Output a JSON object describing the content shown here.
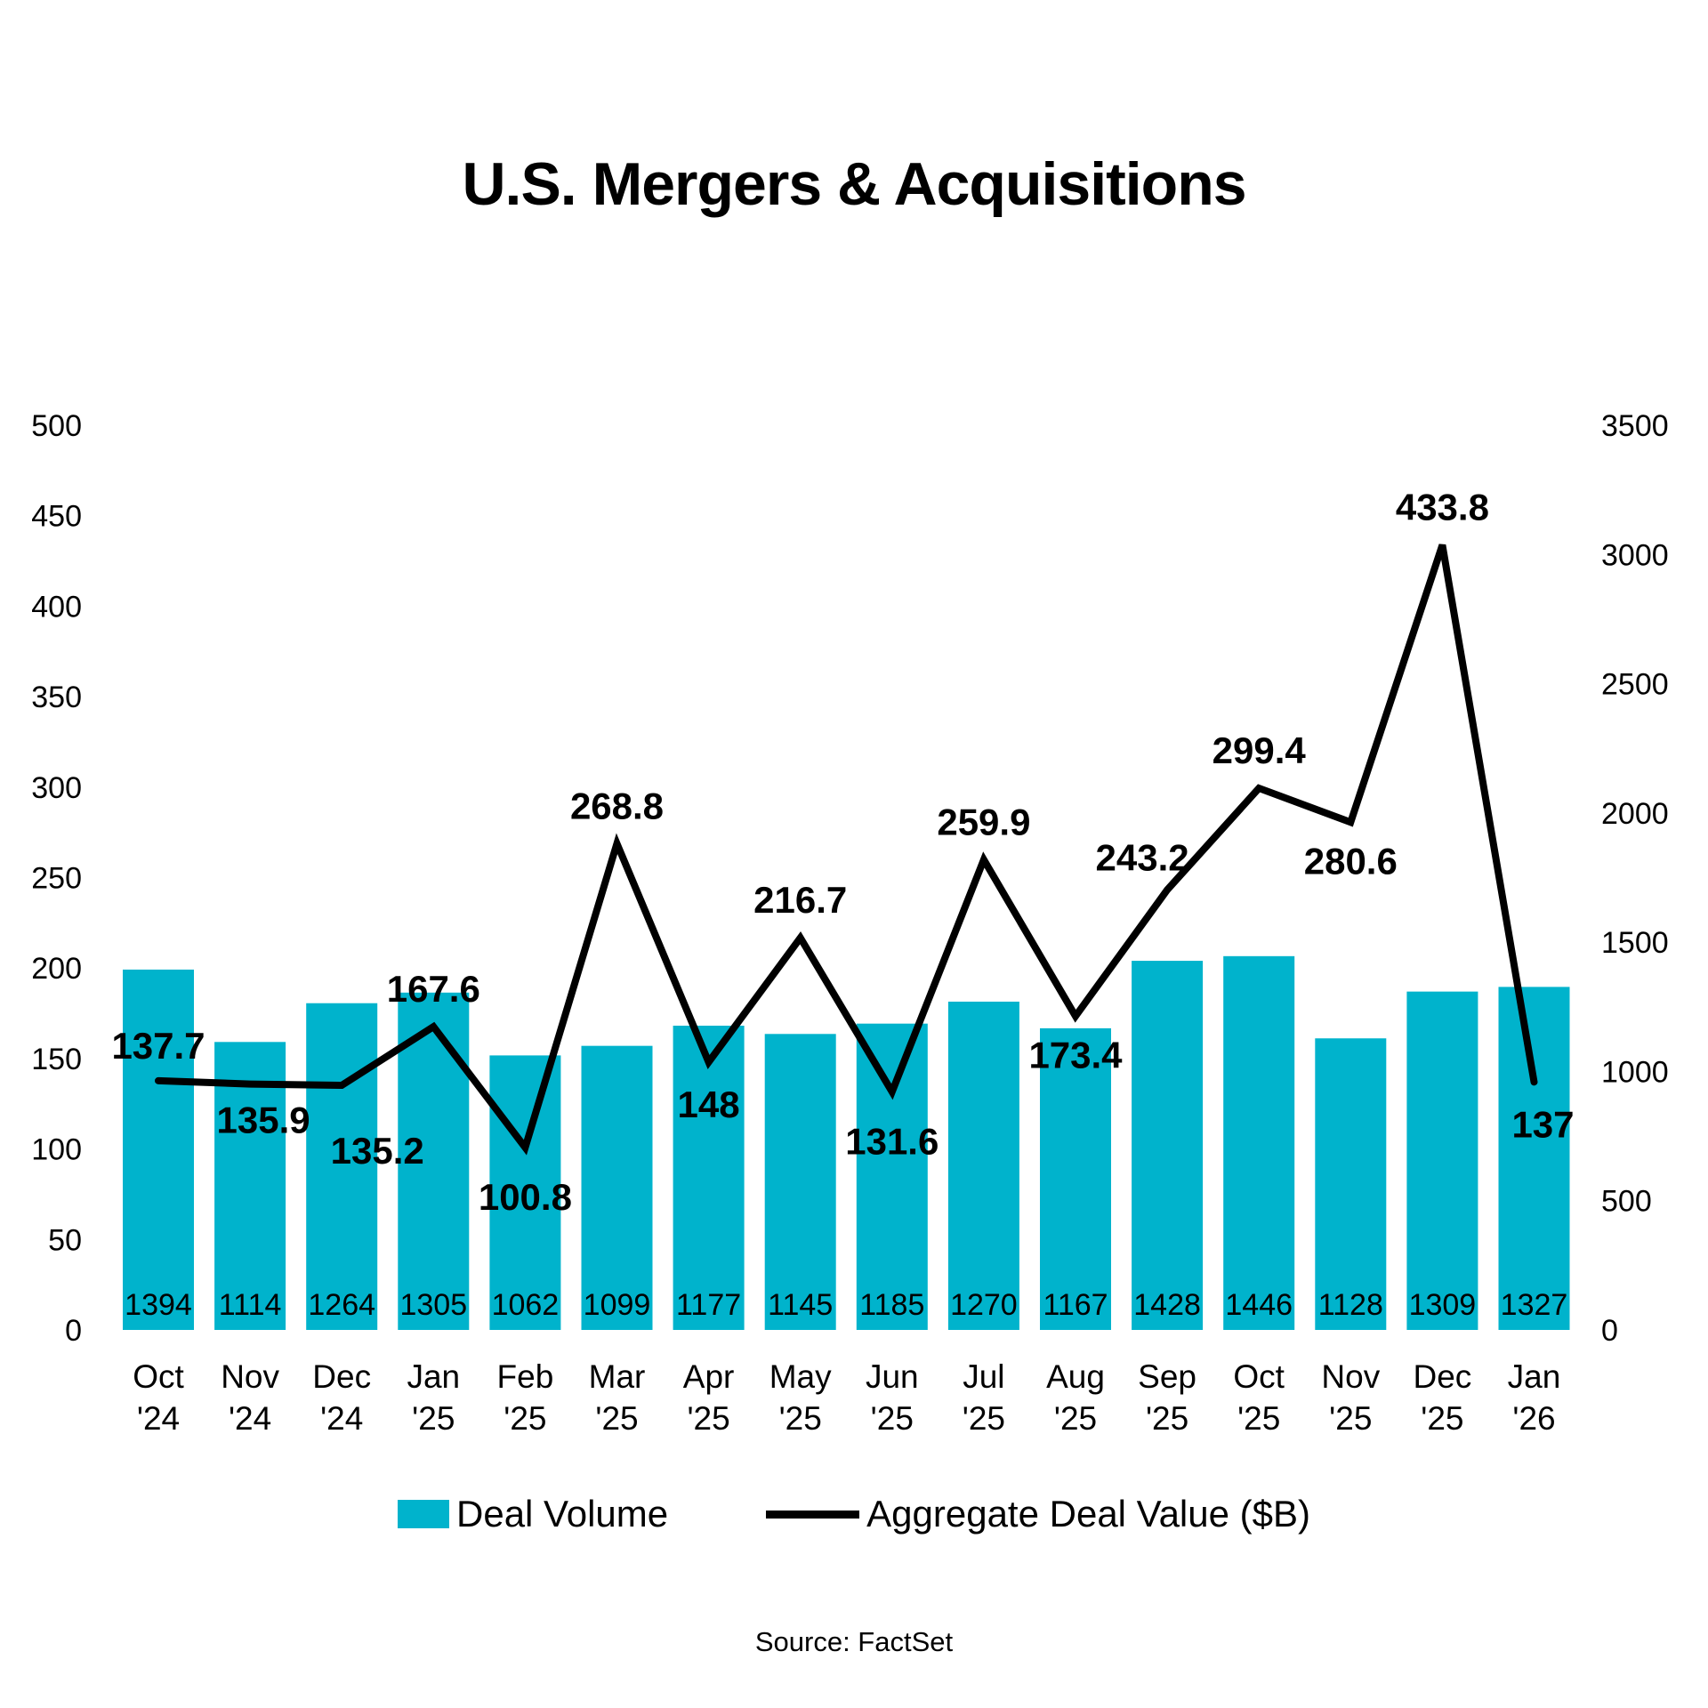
{
  "title": "U.S. Mergers & Acquisitions",
  "source": "Source: FactSet",
  "legend": {
    "bar_label": "Deal Volume",
    "line_label": "Aggregate Deal Value ($B)"
  },
  "colors": {
    "bar": "#00b3cc",
    "line": "#000000",
    "text": "#000000",
    "background": "#ffffff"
  },
  "chart_data": {
    "type": "bar",
    "subtype": "combo-bar-line-dual-axis",
    "title": "U.S. Mergers & Acquisitions",
    "categories": [
      {
        "line1": "Oct",
        "line2": "'24"
      },
      {
        "line1": "Nov",
        "line2": "'24"
      },
      {
        "line1": "Dec",
        "line2": "'24"
      },
      {
        "line1": "Jan",
        "line2": "'25"
      },
      {
        "line1": "Feb",
        "line2": "'25"
      },
      {
        "line1": "Mar",
        "line2": "'25"
      },
      {
        "line1": "Apr",
        "line2": "'25"
      },
      {
        "line1": "May",
        "line2": "'25"
      },
      {
        "line1": "Jun",
        "line2": "'25"
      },
      {
        "line1": "Jul",
        "line2": "'25"
      },
      {
        "line1": "Aug",
        "line2": "'25"
      },
      {
        "line1": "Sep",
        "line2": "'25"
      },
      {
        "line1": "Oct",
        "line2": "'25"
      },
      {
        "line1": "Nov",
        "line2": "'25"
      },
      {
        "line1": "Dec",
        "line2": "'25"
      },
      {
        "line1": "Jan",
        "line2": "'26"
      }
    ],
    "series": [
      {
        "name": "Deal Volume",
        "type": "bar",
        "axis": "right",
        "values": [
          1394,
          1114,
          1264,
          1305,
          1062,
          1099,
          1177,
          1145,
          1185,
          1270,
          1167,
          1428,
          1446,
          1128,
          1309,
          1327
        ]
      },
      {
        "name": "Aggregate Deal Value ($B)",
        "type": "line",
        "axis": "left",
        "values": [
          137.7,
          135.9,
          135.2,
          167.6,
          100.8,
          268.8,
          148,
          216.7,
          131.6,
          259.9,
          173.4,
          243.2,
          299.4,
          280.6,
          433.8,
          137
        ],
        "label_offsets": [
          [
            0,
            -25
          ],
          [
            15,
            55
          ],
          [
            40,
            88
          ],
          [
            0,
            -28
          ],
          [
            0,
            70
          ],
          [
            0,
            -28
          ],
          [
            0,
            62
          ],
          [
            0,
            -28
          ],
          [
            0,
            70
          ],
          [
            0,
            -28
          ],
          [
            0,
            58
          ],
          [
            -28,
            -22
          ],
          [
            0,
            -28
          ],
          [
            0,
            58
          ],
          [
            0,
            -28
          ],
          [
            10,
            62
          ]
        ]
      }
    ],
    "left_axis": {
      "min": 0,
      "max": 500,
      "step": 50,
      "ticks": [
        0,
        50,
        100,
        150,
        200,
        250,
        300,
        350,
        400,
        450,
        500
      ]
    },
    "right_axis": {
      "min": 0,
      "max": 3500,
      "step": 500,
      "ticks": [
        0,
        500,
        1000,
        1500,
        2000,
        2500,
        3000,
        3500
      ]
    },
    "grid": false,
    "legend_position": "bottom"
  }
}
